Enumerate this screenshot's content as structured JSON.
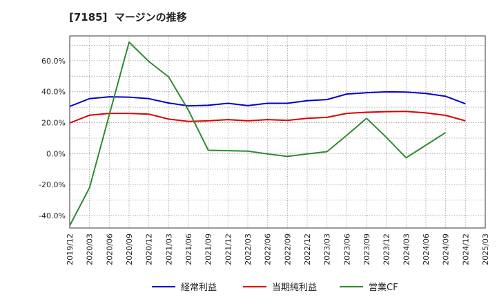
{
  "chart_data": {
    "type": "line",
    "title": "[7185]  マージンの推移",
    "xlabel": "",
    "ylabel": "",
    "x": [
      "2019/12",
      "2020/03",
      "2020/06",
      "2020/09",
      "2020/12",
      "2021/03",
      "2021/06",
      "2021/09",
      "2021/12",
      "2022/03",
      "2022/06",
      "2022/09",
      "2022/12",
      "2023/03",
      "2023/06",
      "2023/09",
      "2023/12",
      "2024/03",
      "2024/06",
      "2024/09",
      "2024/12",
      "2025/03"
    ],
    "ylim": [
      -48,
      76
    ],
    "yticks": [
      -40,
      -20,
      0,
      20,
      40,
      60
    ],
    "ytick_labels": [
      "-40.0%",
      "-20.0%",
      "0.0%",
      "20.0%",
      "40.0%",
      "60.0%"
    ],
    "grid": true,
    "legend_position": "bottom",
    "series": [
      {
        "name": "経常利益",
        "color": "#0000cc",
        "values": [
          30.5,
          35.5,
          36.7,
          36.5,
          35.5,
          32.7,
          30.8,
          31.2,
          32.5,
          31.0,
          32.5,
          32.5,
          34.2,
          34.9,
          38.5,
          39.3,
          39.9,
          39.8,
          38.9,
          37.0,
          32.2,
          null
        ]
      },
      {
        "name": "当期純利益",
        "color": "#dd0000",
        "values": [
          19.8,
          24.8,
          26.0,
          26.0,
          25.5,
          22.3,
          20.8,
          21.2,
          22.0,
          21.2,
          22.0,
          21.5,
          22.8,
          23.4,
          26.0,
          26.7,
          27.1,
          27.3,
          26.3,
          24.7,
          21.2,
          null
        ]
      },
      {
        "name": "営業CF",
        "color": "#2e8b2e",
        "values": [
          -46.5,
          -22.0,
          25.0,
          72.0,
          59.5,
          49.5,
          28.0,
          2.2,
          1.9,
          1.6,
          -0.2,
          -1.8,
          -0.2,
          1.3,
          11.8,
          22.8,
          10.5,
          -2.7,
          5.5,
          13.7,
          null,
          null
        ]
      }
    ]
  }
}
